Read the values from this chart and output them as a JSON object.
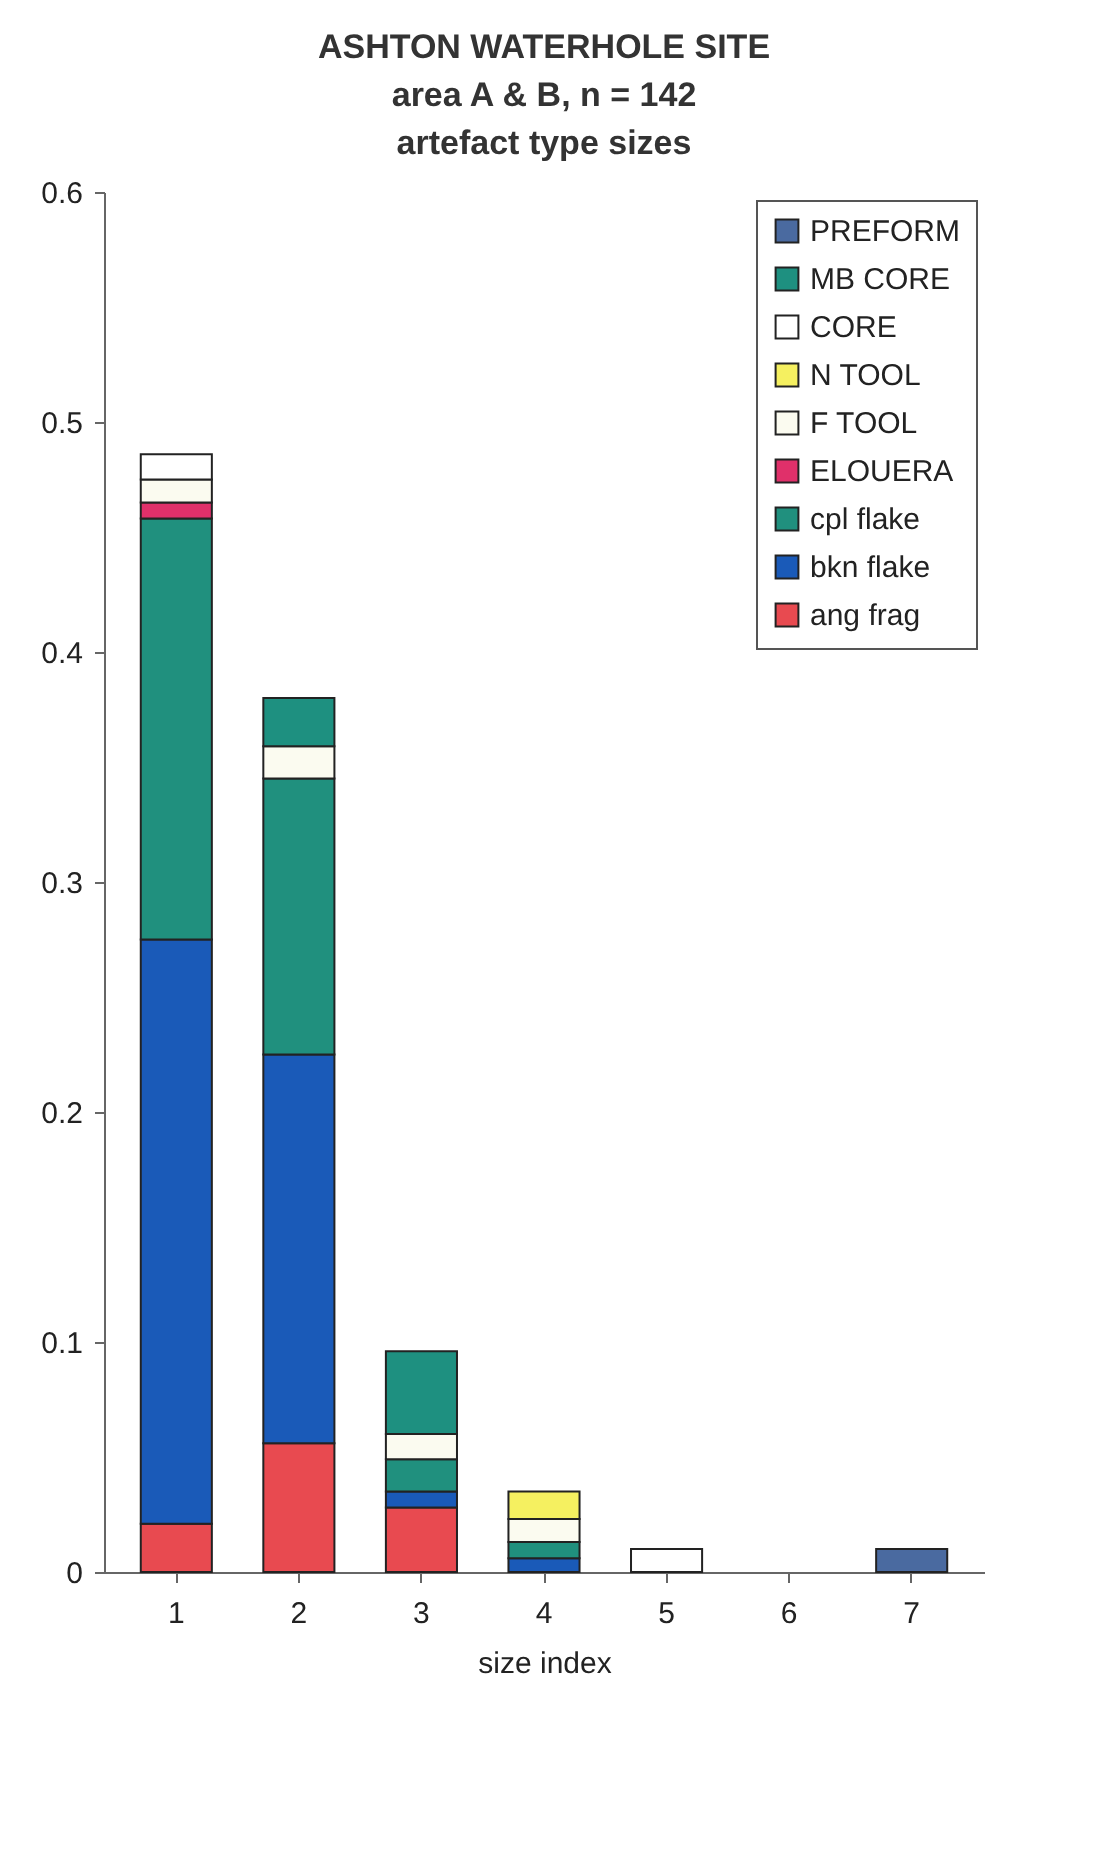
{
  "chart_data": {
    "type": "bar",
    "title": [
      "ASHTON WATERHOLE SITE",
      "area A & B, n = 142",
      "artefact type sizes"
    ],
    "xlabel": "size index",
    "categories": [
      "1",
      "2",
      "3",
      "4",
      "5",
      "6",
      "7"
    ],
    "stacked": true,
    "ylim": [
      0,
      0.6
    ],
    "yticks": [
      0,
      0.1,
      0.2,
      0.3,
      0.4,
      0.5,
      0.6
    ],
    "grid": false,
    "legend": "top right",
    "series": [
      {
        "name": "ang frag",
        "color": "#e84a50",
        "values": [
          0.021,
          0.056,
          0.028,
          null,
          null,
          null,
          null
        ]
      },
      {
        "name": "bkn flake",
        "color": "#1a5ab8",
        "values": [
          0.254,
          0.169,
          0.007,
          0.006,
          null,
          null,
          null
        ]
      },
      {
        "name": "cpl flake",
        "color": "#20907e",
        "values": [
          0.183,
          0.12,
          0.014,
          0.007,
          null,
          null,
          null
        ]
      },
      {
        "name": "ELOUERA",
        "color": "#e0306a",
        "values": [
          0.007,
          null,
          null,
          null,
          null,
          null,
          null
        ]
      },
      {
        "name": "F TOOL",
        "color": "#fbfbf0",
        "values": [
          0.01,
          0.014,
          0.011,
          0.01,
          null,
          null,
          null
        ]
      },
      {
        "name": "N TOOL",
        "color": "#f5f060",
        "values": [
          null,
          null,
          null,
          0.012,
          null,
          null,
          null
        ]
      },
      {
        "name": "CORE",
        "color": "#ffffff",
        "values": [
          0.011,
          null,
          null,
          null,
          0.01,
          null,
          null
        ]
      },
      {
        "name": "MB CORE",
        "color": "#1e9080",
        "values": [
          null,
          0.021,
          0.036,
          null,
          null,
          null,
          null
        ]
      },
      {
        "name": "PREFORM",
        "color": "#4a6aa0",
        "values": [
          null,
          null,
          null,
          null,
          null,
          null,
          0.01
        ]
      }
    ]
  }
}
